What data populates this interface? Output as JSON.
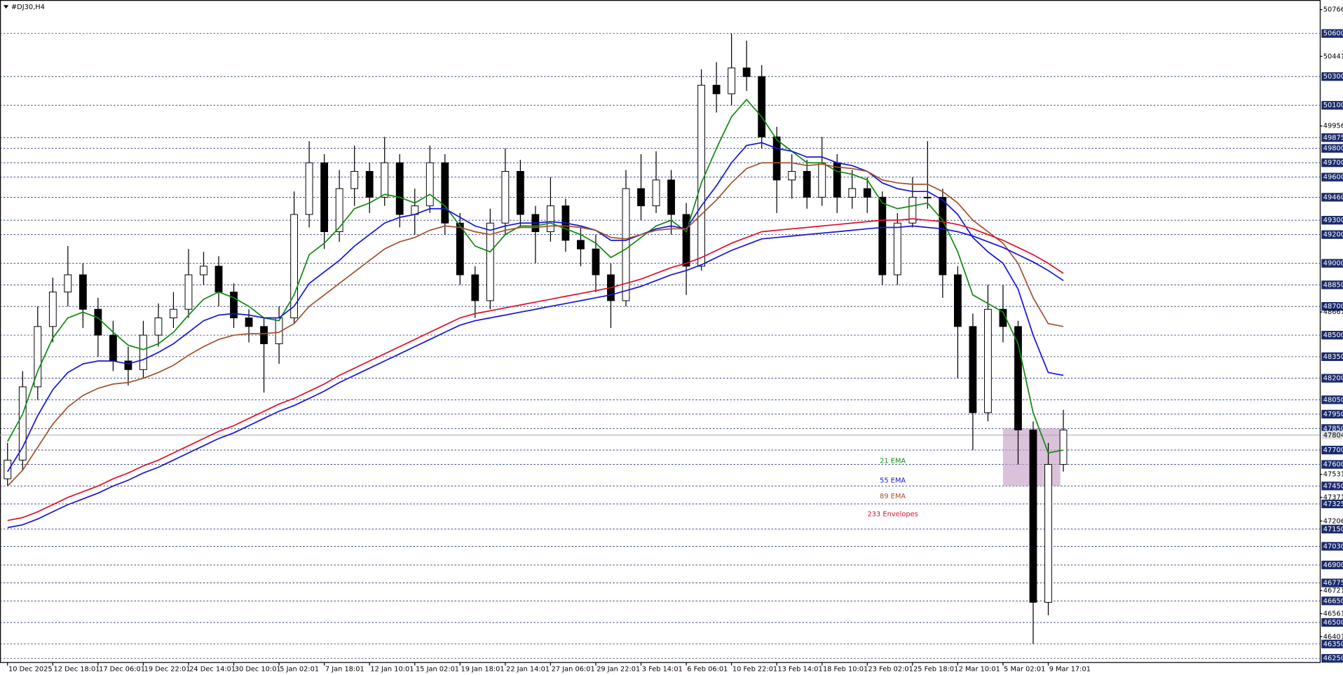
{
  "chart_data": {
    "type": "candlestick",
    "title": "#DJ30,H4",
    "xticks": [
      {
        "value": 0,
        "label": "10 Dec 2025"
      },
      {
        "value": 3,
        "label": "12 Dec 18:01"
      },
      {
        "value": 6,
        "label": "17 Dec 06:01"
      },
      {
        "value": 9,
        "label": "19 Dec 22:01"
      },
      {
        "value": 12,
        "label": "24 Dec 14:01"
      },
      {
        "value": 15,
        "label": "30 Dec 10:01"
      },
      {
        "value": 18,
        "label": "5 Jan 02:01"
      },
      {
        "value": 21,
        "label": "7 Jan 18:01"
      },
      {
        "value": 24,
        "label": "12 Jan 10:01"
      },
      {
        "value": 27,
        "label": "15 Jan 02:01"
      },
      {
        "value": 30,
        "label": "19 Jan 18:01"
      },
      {
        "value": 33,
        "label": "22 Jan 14:01"
      },
      {
        "value": 36,
        "label": "27 Jan 06:01"
      },
      {
        "value": 39,
        "label": "29 Jan 22:01"
      },
      {
        "value": 42,
        "label": "3 Feb 14:01"
      },
      {
        "value": 45,
        "label": "6 Feb 06:01"
      },
      {
        "value": 48,
        "label": "10 Feb 22:01"
      },
      {
        "value": 51,
        "label": "13 Feb 14:01"
      },
      {
        "value": 54,
        "label": "18 Feb 10:01"
      },
      {
        "value": 57,
        "label": "23 Feb 02:01"
      },
      {
        "value": 60,
        "label": "25 Feb 18:01"
      },
      {
        "value": 63,
        "label": "2 Mar 10:01"
      },
      {
        "value": 66,
        "label": "5 Mar 02:01"
      },
      {
        "value": 69,
        "label": "9 Mar 17:01"
      }
    ],
    "xlim": [
      -0.5,
      87
    ],
    "ylim": [
      46176,
      50833
    ],
    "yticks": [
      50766,
      50441,
      49956,
      48661,
      47531,
      47371,
      47206,
      46721,
      46561,
      46401
    ],
    "levels": [
      50600,
      50300,
      50100,
      49875,
      49800,
      49700,
      49600,
      49460,
      49300,
      49200,
      49000,
      48850,
      48700,
      48500,
      48350,
      48200,
      48050,
      47950,
      47850,
      47700,
      47600,
      47450,
      47325,
      47150,
      47030,
      46900,
      46775,
      46650,
      46500,
      46350,
      46250
    ],
    "current_price": 47804,
    "zone": {
      "start": 66,
      "end": 69.8,
      "low": 47450,
      "high": 47850
    },
    "open": [
      47500,
      47630,
      48140,
      48560,
      48800,
      48920,
      48680,
      48500,
      48320,
      48260,
      48500,
      48620,
      48680,
      48920,
      48980,
      48800,
      48620,
      48560,
      48440,
      48620,
      49340,
      49700,
      49220,
      49520,
      49640,
      49460,
      49700,
      49340,
      49400,
      49700,
      49280,
      48920,
      48740,
      49280,
      49640,
      49340,
      49220,
      49400,
      49160,
      49100,
      48920,
      48740,
      49520,
      49400,
      49580,
      49340,
      48980,
      50240,
      50180,
      50360,
      50300,
      49880,
      49580,
      49640,
      49460,
      49700,
      49460,
      49520,
      49460,
      48920,
      49280,
      49460,
      49460,
      48920,
      48560,
      47960,
      48680,
      48560,
      47840,
      46640,
      47600
    ],
    "high": [
      47750,
      48250,
      48700,
      48900,
      49120,
      49000,
      48760,
      48600,
      48420,
      48600,
      48720,
      48800,
      49100,
      49080,
      49050,
      48860,
      48680,
      48620,
      48700,
      49500,
      49850,
      49760,
      49650,
      49820,
      49700,
      49880,
      49760,
      49520,
      49820,
      49760,
      49350,
      48980,
      49380,
      49800,
      49720,
      49400,
      49600,
      49450,
      49250,
      49200,
      49000,
      49650,
      49760,
      49780,
      49650,
      49420,
      50350,
      50400,
      50600,
      50550,
      50380,
      49950,
      49760,
      49720,
      49880,
      49760,
      49650,
      49600,
      49500,
      49350,
      49600,
      49850,
      49520,
      48980,
      48650,
      48850,
      48850,
      48600,
      47900,
      47750,
      47980
    ],
    "low": [
      47450,
      47560,
      48050,
      48450,
      48700,
      48550,
      48350,
      48250,
      48150,
      48200,
      48420,
      48550,
      48620,
      48850,
      48700,
      48550,
      48450,
      48100,
      48300,
      48580,
      49250,
      49100,
      49150,
      49400,
      49350,
      49400,
      49250,
      49200,
      49350,
      49200,
      48850,
      48620,
      48680,
      49200,
      49250,
      49000,
      49150,
      49080,
      48980,
      48800,
      48550,
      48700,
      49300,
      49350,
      49200,
      48780,
      48950,
      50050,
      50100,
      50200,
      49800,
      49350,
      49450,
      49380,
      49400,
      49350,
      49380,
      49350,
      48850,
      48850,
      49250,
      49380,
      48760,
      48200,
      47700,
      47900,
      48450,
      47600,
      46350,
      46550,
      47550
    ],
    "close": [
      47630,
      48140,
      48560,
      48800,
      48920,
      48680,
      48500,
      48320,
      48260,
      48500,
      48620,
      48680,
      48920,
      48980,
      48800,
      48620,
      48560,
      48440,
      48620,
      49340,
      49700,
      49220,
      49520,
      49640,
      49460,
      49700,
      49340,
      49400,
      49700,
      49280,
      48920,
      48740,
      49280,
      49640,
      49340,
      49220,
      49400,
      49160,
      49100,
      48920,
      48740,
      49520,
      49400,
      49580,
      49340,
      48980,
      50240,
      50180,
      50360,
      50300,
      49880,
      49580,
      49640,
      49460,
      49700,
      49460,
      49520,
      49460,
      48920,
      49280,
      49460,
      49460,
      48920,
      48560,
      47960,
      48680,
      48560,
      47840,
      46640,
      47600,
      47840
    ],
    "series": [
      {
        "name": "21 EMA",
        "color": "#118a11",
        "values": [
          47760,
          47950,
          48250,
          48480,
          48620,
          48660,
          48620,
          48520,
          48430,
          48400,
          48440,
          48520,
          48640,
          48750,
          48800,
          48760,
          48700,
          48620,
          48600,
          48780,
          49060,
          49140,
          49250,
          49380,
          49420,
          49480,
          49460,
          49420,
          49480,
          49400,
          49260,
          49120,
          49080,
          49200,
          49260,
          49260,
          49280,
          49240,
          49200,
          49140,
          49040,
          49100,
          49180,
          49260,
          49300,
          49220,
          49560,
          49800,
          50020,
          50140,
          50020,
          49860,
          49780,
          49700,
          49700,
          49640,
          49620,
          49580,
          49420,
          49380,
          49400,
          49420,
          49300,
          49080,
          48780,
          48720,
          48660,
          48440,
          47960,
          47680,
          47700
        ]
      },
      {
        "name": "55 EMA",
        "color": "#1515d6",
        "values": [
          47550,
          47720,
          47940,
          48120,
          48240,
          48300,
          48320,
          48320,
          48300,
          48330,
          48380,
          48440,
          48520,
          48600,
          48640,
          48650,
          48640,
          48620,
          48620,
          48700,
          48860,
          48940,
          49020,
          49120,
          49200,
          49280,
          49320,
          49340,
          49380,
          49380,
          49320,
          49260,
          49230,
          49260,
          49280,
          49280,
          49290,
          49280,
          49260,
          49230,
          49160,
          49160,
          49200,
          49240,
          49260,
          49240,
          49400,
          49540,
          49700,
          49820,
          49840,
          49800,
          49780,
          49740,
          49740,
          49700,
          49680,
          49640,
          49560,
          49520,
          49500,
          49500,
          49440,
          49340,
          49180,
          49080,
          49000,
          48820,
          48500,
          48240,
          48220
        ]
      },
      {
        "name": "89 EMA",
        "color": "#a0522d",
        "values": [
          47450,
          47560,
          47720,
          47880,
          48000,
          48080,
          48130,
          48160,
          48170,
          48200,
          48240,
          48290,
          48360,
          48420,
          48470,
          48500,
          48510,
          48510,
          48520,
          48580,
          48700,
          48780,
          48860,
          48940,
          49020,
          49100,
          49150,
          49180,
          49230,
          49260,
          49250,
          49220,
          49200,
          49230,
          49250,
          49250,
          49260,
          49260,
          49250,
          49230,
          49180,
          49170,
          49200,
          49230,
          49240,
          49240,
          49340,
          49440,
          49560,
          49660,
          49700,
          49700,
          49700,
          49680,
          49690,
          49670,
          49660,
          49640,
          49580,
          49560,
          49550,
          49550,
          49500,
          49420,
          49300,
          49220,
          49140,
          49000,
          48760,
          48580,
          48560
        ]
      },
      {
        "name": "233 Envelopes",
        "color": "#e0102c",
        "values": [
          47210,
          47230,
          47270,
          47320,
          47370,
          47410,
          47450,
          47500,
          47540,
          47590,
          47630,
          47680,
          47730,
          47780,
          47830,
          47870,
          47920,
          47970,
          48020,
          48060,
          48110,
          48160,
          48220,
          48270,
          48320,
          48370,
          48420,
          48470,
          48520,
          48570,
          48620,
          48650,
          48670,
          48690,
          48710,
          48730,
          48750,
          48770,
          48790,
          48810,
          48830,
          48860,
          48890,
          48930,
          48970,
          49000,
          49040,
          49090,
          49140,
          49180,
          49220,
          49230,
          49240,
          49250,
          49260,
          49270,
          49280,
          49290,
          49300,
          49300,
          49310,
          49300,
          49290,
          49270,
          49240,
          49200,
          49160,
          49110,
          49060,
          49000,
          48930
        ],
        "lower": [
          47160,
          47180,
          47220,
          47270,
          47320,
          47360,
          47400,
          47450,
          47490,
          47540,
          47580,
          47630,
          47680,
          47730,
          47780,
          47820,
          47870,
          47920,
          47970,
          48010,
          48060,
          48110,
          48170,
          48220,
          48270,
          48320,
          48370,
          48420,
          48470,
          48520,
          48570,
          48600,
          48620,
          48640,
          48660,
          48680,
          48700,
          48720,
          48740,
          48760,
          48780,
          48810,
          48840,
          48880,
          48920,
          48950,
          48990,
          49040,
          49090,
          49130,
          49170,
          49180,
          49190,
          49200,
          49210,
          49220,
          49230,
          49240,
          49250,
          49250,
          49260,
          49250,
          49240,
          49220,
          49190,
          49150,
          49110,
          49060,
          49010,
          48950,
          48880
        ],
        "lower_color": "#1515d6"
      }
    ]
  }
}
